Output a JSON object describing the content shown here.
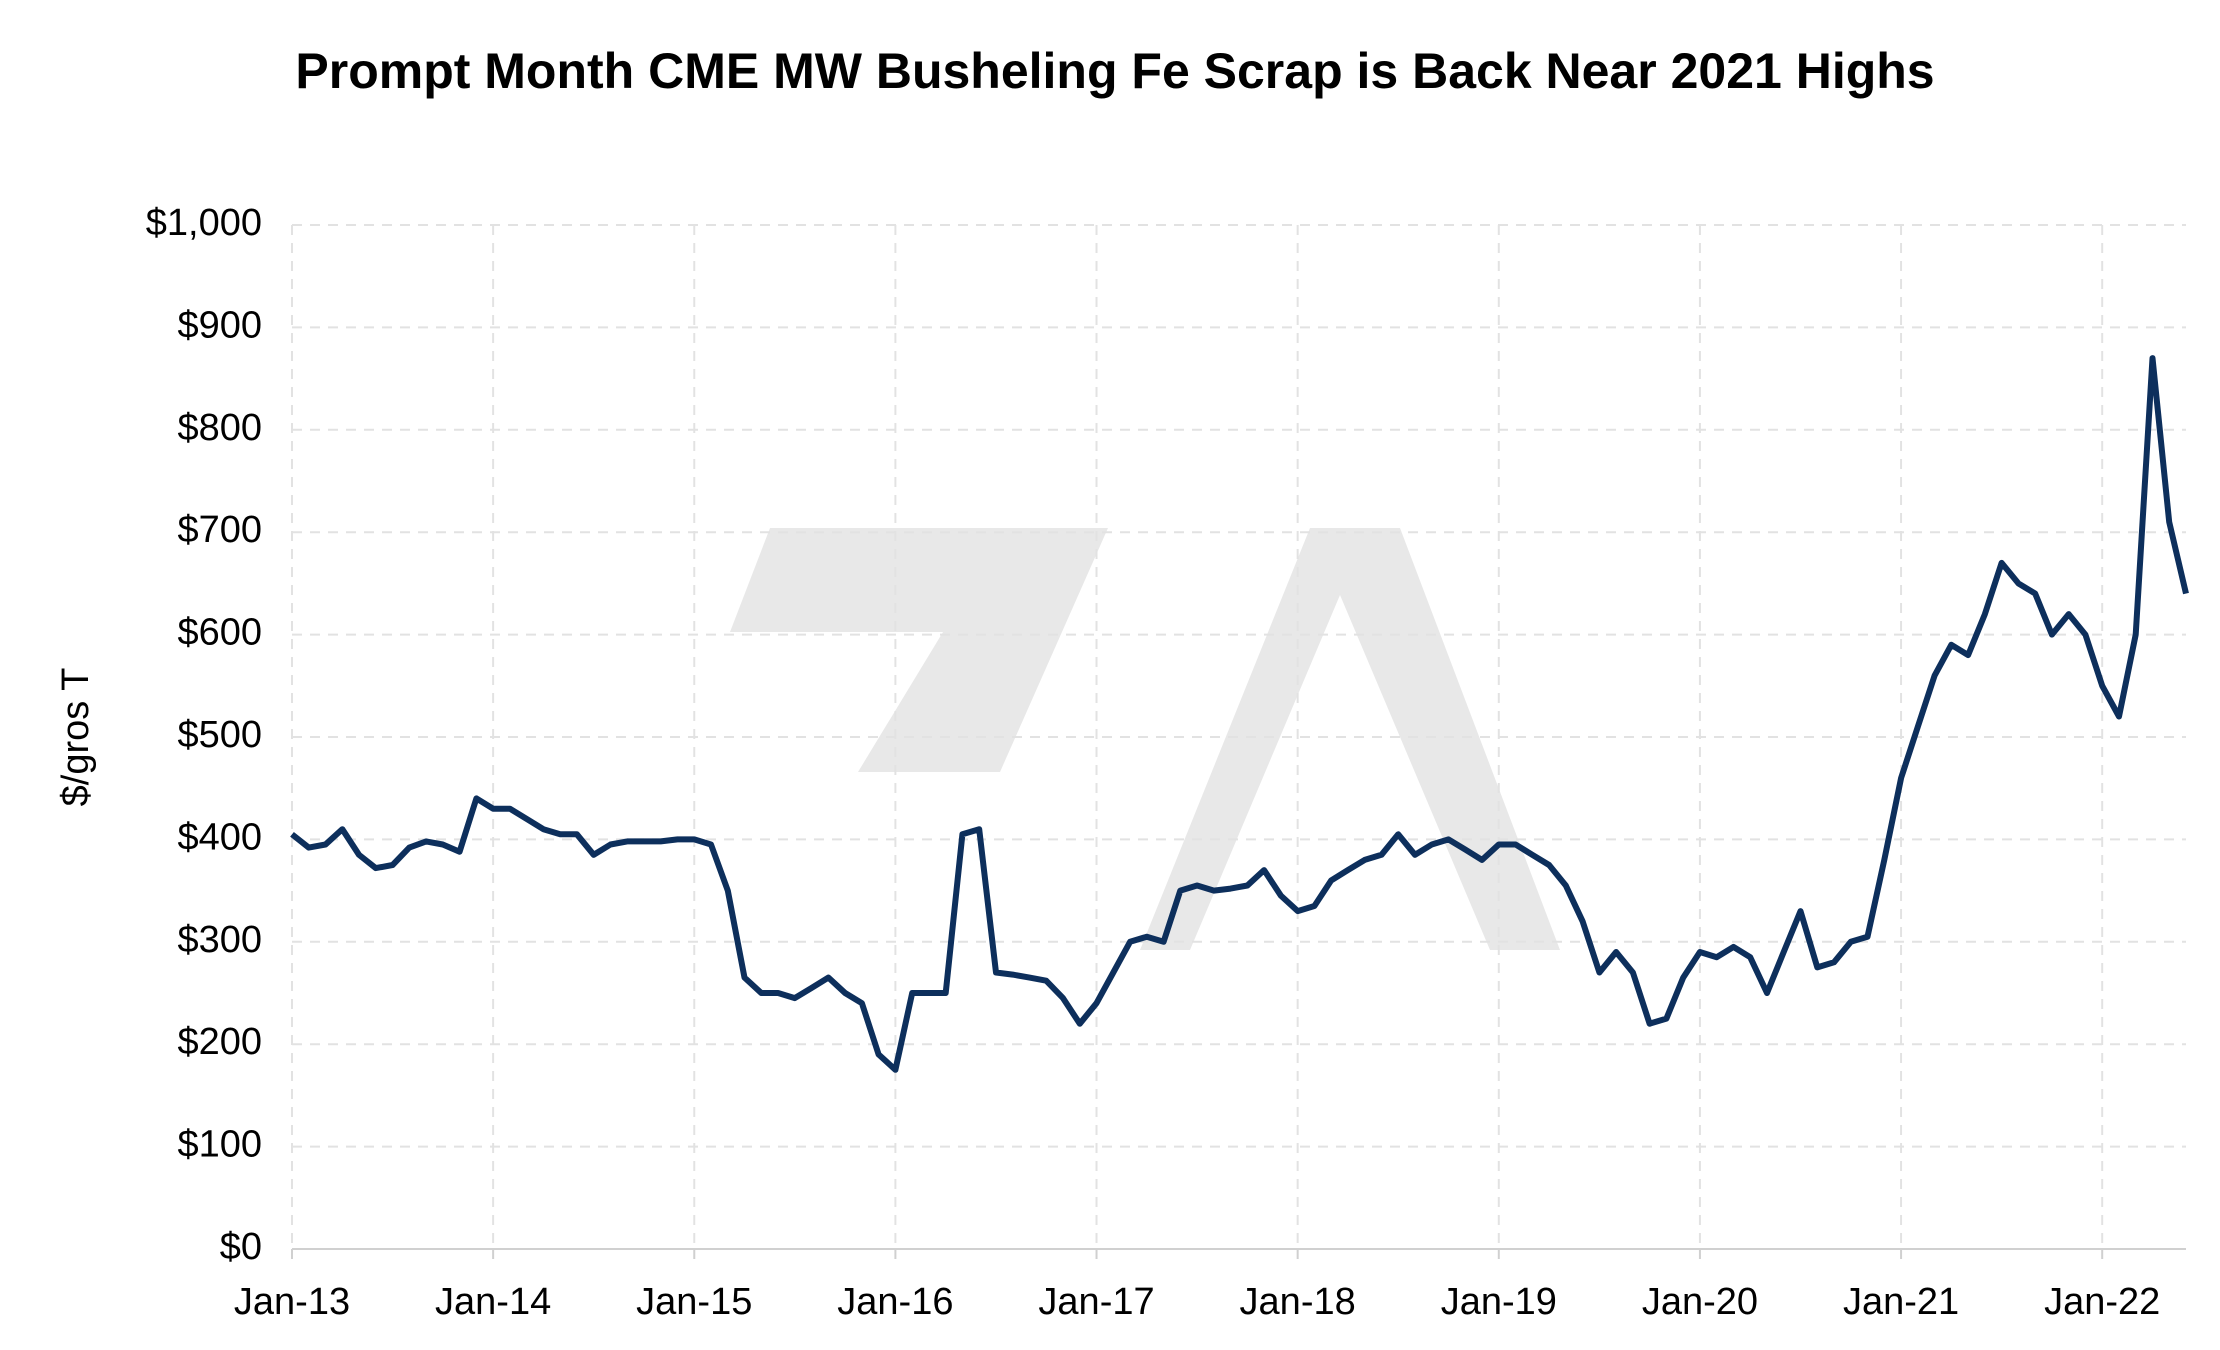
{
  "chart_data": {
    "type": "line",
    "title": "Prompt Month CME MW Busheling Fe Scrap is Back Near 2021 Highs",
    "y_label": "$/gros T",
    "x": [
      "2013-01",
      "2013-02",
      "2013-03",
      "2013-04",
      "2013-05",
      "2013-06",
      "2013-07",
      "2013-08",
      "2013-09",
      "2013-10",
      "2013-11",
      "2013-12",
      "2014-01",
      "2014-02",
      "2014-03",
      "2014-04",
      "2014-05",
      "2014-06",
      "2014-07",
      "2014-08",
      "2014-09",
      "2014-10",
      "2014-11",
      "2014-12",
      "2015-01",
      "2015-02",
      "2015-03",
      "2015-04",
      "2015-05",
      "2015-06",
      "2015-07",
      "2015-08",
      "2015-09",
      "2015-10",
      "2015-11",
      "2015-12",
      "2016-01",
      "2016-02",
      "2016-03",
      "2016-04",
      "2016-05",
      "2016-06",
      "2016-07",
      "2016-08",
      "2016-09",
      "2016-10",
      "2016-11",
      "2016-12",
      "2017-01",
      "2017-02",
      "2017-03",
      "2017-04",
      "2017-05",
      "2017-06",
      "2017-07",
      "2017-08",
      "2017-09",
      "2017-10",
      "2017-11",
      "2017-12",
      "2018-01",
      "2018-02",
      "2018-03",
      "2018-04",
      "2018-05",
      "2018-06",
      "2018-07",
      "2018-08",
      "2018-09",
      "2018-10",
      "2018-11",
      "2018-12",
      "2019-01",
      "2019-02",
      "2019-03",
      "2019-04",
      "2019-05",
      "2019-06",
      "2019-07",
      "2019-08",
      "2019-09",
      "2019-10",
      "2019-11",
      "2019-12",
      "2020-01",
      "2020-02",
      "2020-03",
      "2020-04",
      "2020-05",
      "2020-06",
      "2020-07",
      "2020-08",
      "2020-09",
      "2020-10",
      "2020-11",
      "2020-12",
      "2021-01",
      "2021-02",
      "2021-03",
      "2021-04",
      "2021-05",
      "2021-06",
      "2021-07",
      "2021-08",
      "2021-09",
      "2021-10",
      "2021-11",
      "2021-12",
      "2022-01",
      "2022-02",
      "2022-03",
      "2022-04",
      "2022-05",
      "2022-06"
    ],
    "series": [
      {
        "color": "#0d2f5c",
        "values": [
          405,
          392,
          395,
          410,
          385,
          372,
          375,
          392,
          398,
          395,
          388,
          440,
          430,
          430,
          420,
          410,
          405,
          405,
          385,
          395,
          398,
          398,
          398,
          400,
          400,
          395,
          350,
          265,
          250,
          250,
          245,
          255,
          265,
          250,
          240,
          190,
          175,
          250,
          250,
          250,
          405,
          410,
          270,
          268,
          265,
          262,
          245,
          220,
          240,
          270,
          300,
          305,
          300,
          350,
          355,
          350,
          352,
          355,
          370,
          345,
          330,
          335,
          360,
          370,
          380,
          385,
          405,
          385,
          395,
          400,
          390,
          380,
          395,
          395,
          385,
          375,
          355,
          320,
          270,
          290,
          270,
          220,
          225,
          265,
          290,
          285,
          295,
          285,
          250,
          290,
          330,
          275,
          280,
          300,
          305,
          380,
          460,
          510,
          560,
          590,
          580,
          620,
          670,
          650,
          640,
          600,
          620,
          600,
          550,
          520,
          600,
          870,
          710,
          640
        ]
      }
    ],
    "xlim": [
      "2013-01",
      "2022-06"
    ],
    "xticks": [
      {
        "value": "2013-01",
        "label": "Jan-13"
      },
      {
        "value": "2014-01",
        "label": "Jan-14"
      },
      {
        "value": "2015-01",
        "label": "Jan-15"
      },
      {
        "value": "2016-01",
        "label": "Jan-16"
      },
      {
        "value": "2017-01",
        "label": "Jan-17"
      },
      {
        "value": "2018-01",
        "label": "Jan-18"
      },
      {
        "value": "2019-01",
        "label": "Jan-19"
      },
      {
        "value": "2020-01",
        "label": "Jan-20"
      },
      {
        "value": "2021-01",
        "label": "Jan-21"
      },
      {
        "value": "2022-01",
        "label": "Jan-22"
      }
    ],
    "ylim": [
      0,
      1000
    ],
    "yticks": [
      {
        "value": 0,
        "label": "$0"
      },
      {
        "value": 100,
        "label": "$100"
      },
      {
        "value": 200,
        "label": "$200"
      },
      {
        "value": 300,
        "label": "$300"
      },
      {
        "value": 400,
        "label": "$400"
      },
      {
        "value": 500,
        "label": "$500"
      },
      {
        "value": 600,
        "label": "$600"
      },
      {
        "value": 700,
        "label": "$700"
      },
      {
        "value": 800,
        "label": "$800"
      },
      {
        "value": 900,
        "label": "$900"
      },
      {
        "value": 1000,
        "label": "$1,000"
      }
    ],
    "grid": true
  }
}
